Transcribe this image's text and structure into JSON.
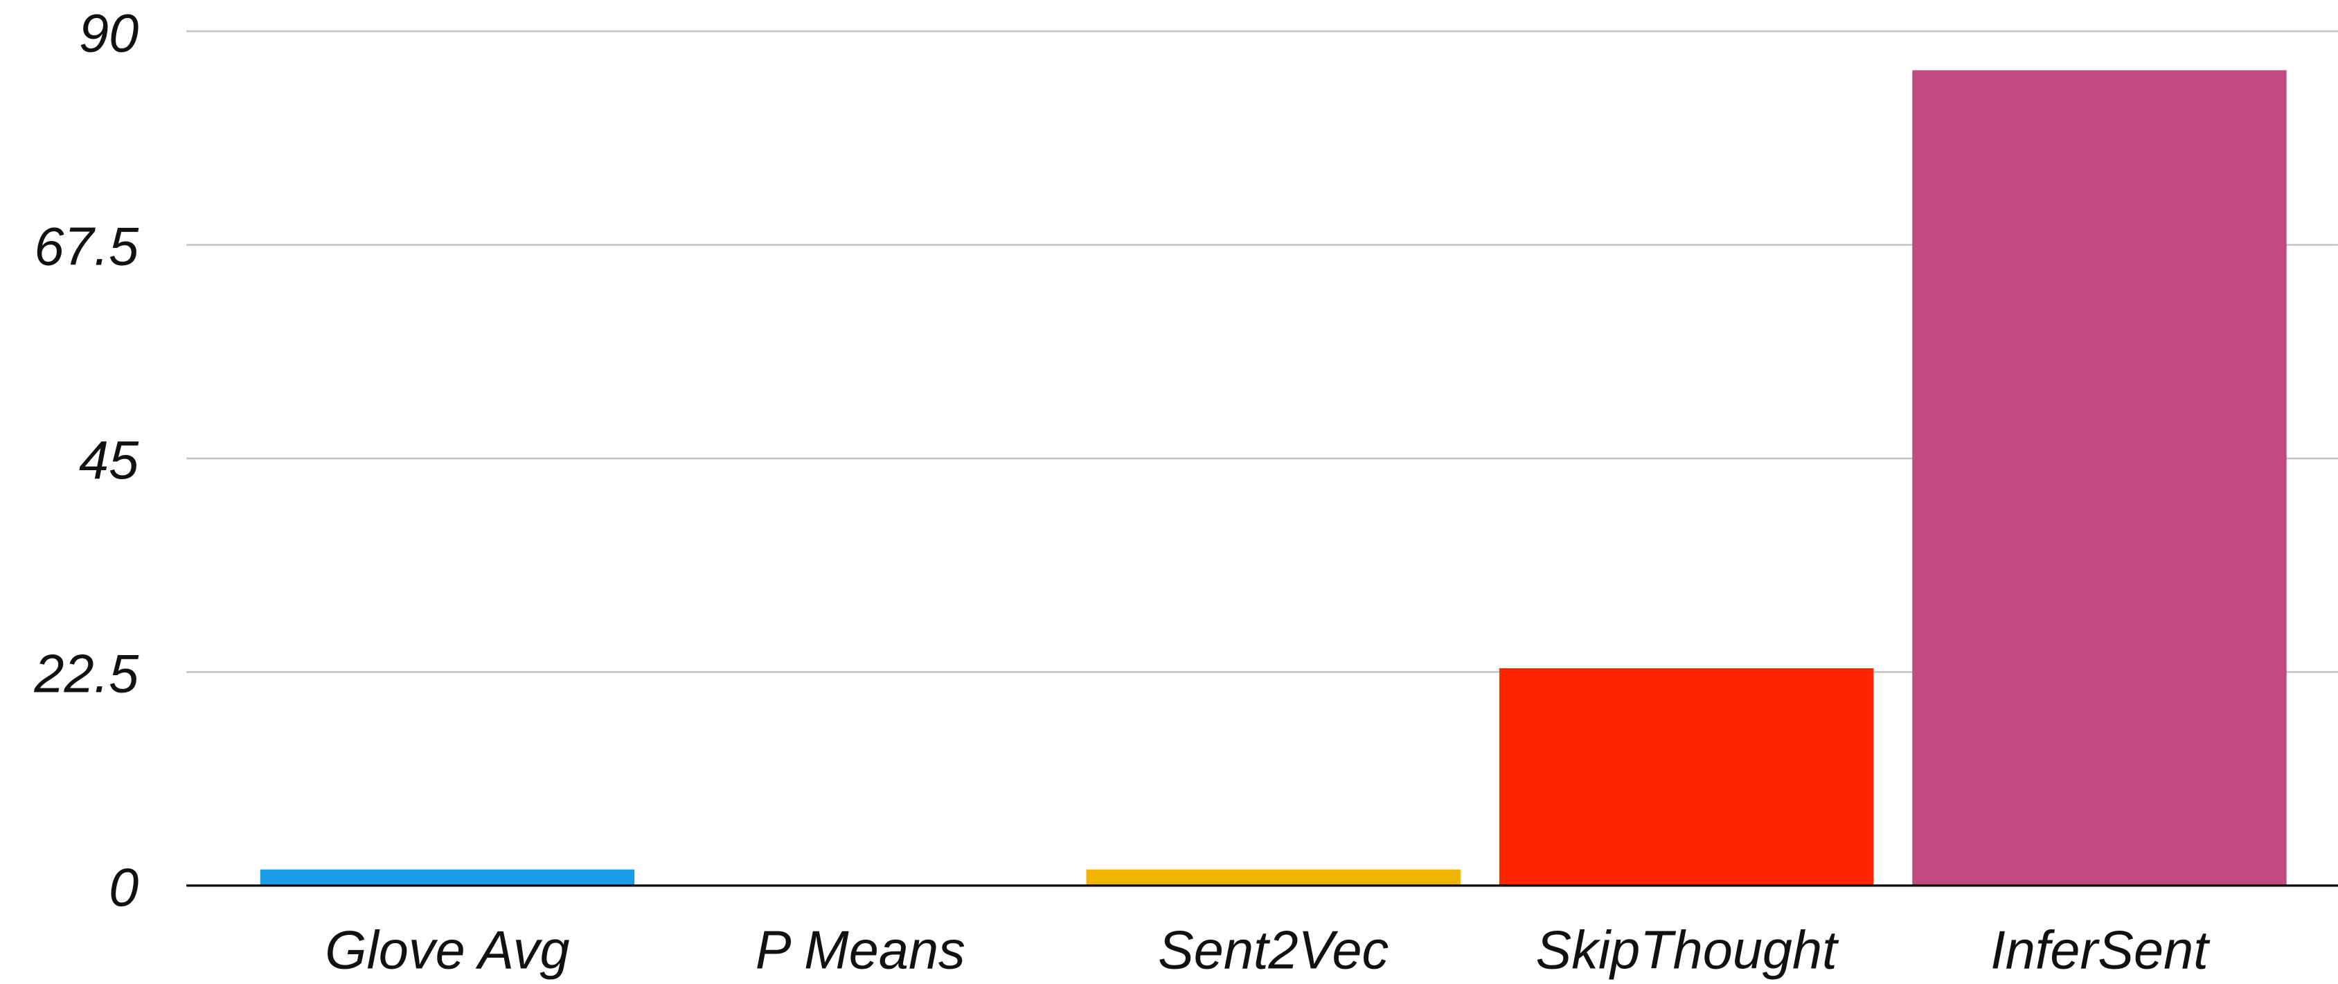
{
  "chart_data": {
    "type": "bar",
    "categories": [
      "Glove Avg",
      "P Means",
      "Sent2Vec",
      "SkipThought",
      "InferSent"
    ],
    "values": [
      1.7,
      0,
      1.7,
      22.9,
      85.9
    ],
    "colors": [
      "#1a9be8",
      "#9e9e9e",
      "#f0b400",
      "#ff2600",
      "#c14a84"
    ],
    "ylim": [
      0,
      90
    ],
    "yticks": [
      0,
      22.5,
      45,
      67.5,
      90
    ],
    "grid": true
  }
}
